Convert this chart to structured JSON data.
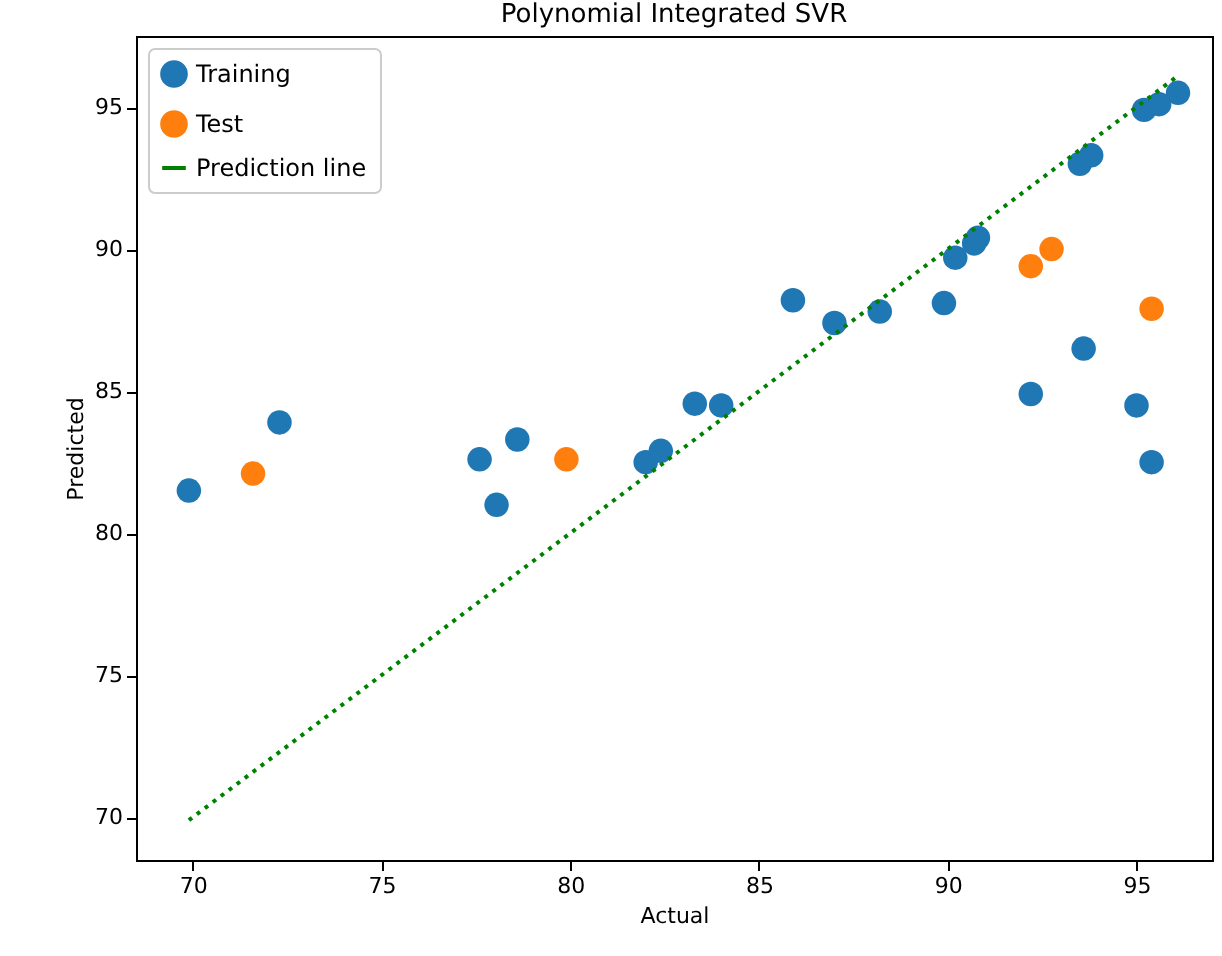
{
  "chart_data": {
    "type": "scatter",
    "title": "Polynomial Integrated SVR",
    "xlabel": "Actual",
    "ylabel": "Predicted",
    "xlim": [
      68.5,
      97.0
    ],
    "ylim": [
      68.5,
      97.5
    ],
    "xticks": [
      70,
      75,
      80,
      85,
      90,
      95
    ],
    "yticks": [
      70,
      75,
      80,
      85,
      90,
      95
    ],
    "grid": false,
    "legend": "top left",
    "marker": "circle",
    "series": [
      {
        "name": "Training",
        "color": "#1f77b4",
        "x": [
          69.9,
          72.3,
          77.6,
          78.05,
          78.6,
          82.0,
          82.4,
          83.3,
          84.0,
          85.9,
          87.0,
          88.2,
          89.9,
          90.2,
          90.7,
          90.8,
          92.2,
          93.5,
          93.8,
          93.6,
          95.0,
          95.4,
          95.2,
          95.6,
          96.1
        ],
        "values": [
          81.5,
          83.9,
          82.6,
          81.0,
          83.3,
          82.5,
          82.9,
          84.56,
          84.5,
          88.2,
          87.4,
          87.8,
          88.1,
          89.7,
          90.2,
          90.4,
          84.9,
          93.0,
          93.3,
          86.5,
          84.5,
          82.5,
          94.9,
          95.1,
          95.5
        ]
      },
      {
        "name": "Test",
        "color": "#ff7f0e",
        "x": [
          71.6,
          79.9,
          92.2,
          92.75,
          95.4
        ],
        "values": [
          82.1,
          82.6,
          89.4,
          90.0,
          87.9
        ]
      },
      {
        "name": "Prediction line",
        "type": "line",
        "color": "#008000",
        "line_style": "dotted",
        "marker": "none",
        "x": [
          69.9,
          96.1
        ],
        "values": [
          69.9,
          96.1
        ]
      }
    ]
  }
}
